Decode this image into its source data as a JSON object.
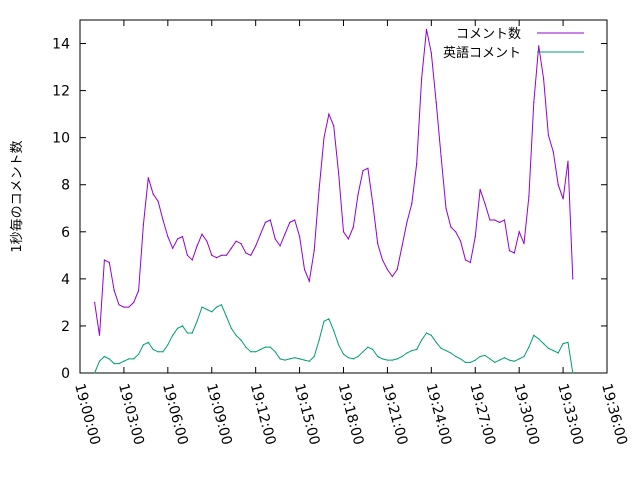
{
  "chart_data": {
    "type": "line",
    "title": "",
    "xlabel": "",
    "ylabel": "1秒毎のコメント数",
    "xlim": [
      "19:00:00",
      "19:36:00"
    ],
    "ylim": [
      0,
      15
    ],
    "x_ticks": [
      "19:00:00",
      "19:03:00",
      "19:06:00",
      "19:09:00",
      "19:12:00",
      "19:15:00",
      "19:18:00",
      "19:21:00",
      "19:24:00",
      "19:27:00",
      "19:30:00",
      "19:33:00",
      "19:36:00"
    ],
    "y_ticks": [
      0,
      2,
      4,
      6,
      8,
      10,
      12,
      14
    ],
    "legend_position": "top-right",
    "grid": false,
    "series": [
      {
        "name": "コメント数",
        "color": "#9400d3",
        "points": [
          [
            "19:01:00",
            3.0
          ],
          [
            "19:01:20",
            1.6
          ],
          [
            "19:01:40",
            4.8
          ],
          [
            "19:02:00",
            4.7
          ],
          [
            "19:02:20",
            3.5
          ],
          [
            "19:02:40",
            2.9
          ],
          [
            "19:03:00",
            2.8
          ],
          [
            "19:03:20",
            2.8
          ],
          [
            "19:03:40",
            3.0
          ],
          [
            "19:04:00",
            3.5
          ],
          [
            "19:04:20",
            6.3
          ],
          [
            "19:04:40",
            8.3
          ],
          [
            "19:05:00",
            7.6
          ],
          [
            "19:05:20",
            7.3
          ],
          [
            "19:05:40",
            6.5
          ],
          [
            "19:06:00",
            5.8
          ],
          [
            "19:06:20",
            5.3
          ],
          [
            "19:06:40",
            5.7
          ],
          [
            "19:07:00",
            5.8
          ],
          [
            "19:07:20",
            5.0
          ],
          [
            "19:07:40",
            4.8
          ],
          [
            "19:08:00",
            5.4
          ],
          [
            "19:08:20",
            5.9
          ],
          [
            "19:08:40",
            5.6
          ],
          [
            "19:09:00",
            5.0
          ],
          [
            "19:09:20",
            4.9
          ],
          [
            "19:09:40",
            5.0
          ],
          [
            "19:10:00",
            5.0
          ],
          [
            "19:10:20",
            5.3
          ],
          [
            "19:10:40",
            5.6
          ],
          [
            "19:11:00",
            5.5
          ],
          [
            "19:11:20",
            5.1
          ],
          [
            "19:11:40",
            5.0
          ],
          [
            "19:12:00",
            5.4
          ],
          [
            "19:12:20",
            5.9
          ],
          [
            "19:12:40",
            6.4
          ],
          [
            "19:13:00",
            6.5
          ],
          [
            "19:13:20",
            5.7
          ],
          [
            "19:13:40",
            5.4
          ],
          [
            "19:14:00",
            5.9
          ],
          [
            "19:14:20",
            6.4
          ],
          [
            "19:14:40",
            6.5
          ],
          [
            "19:15:00",
            5.8
          ],
          [
            "19:15:20",
            4.4
          ],
          [
            "19:15:40",
            3.9
          ],
          [
            "19:16:00",
            5.2
          ],
          [
            "19:16:20",
            7.8
          ],
          [
            "19:16:40",
            10.0
          ],
          [
            "19:17:00",
            11.0
          ],
          [
            "19:17:20",
            10.5
          ],
          [
            "19:17:40",
            8.5
          ],
          [
            "19:18:00",
            6.0
          ],
          [
            "19:18:20",
            5.7
          ],
          [
            "19:18:40",
            6.2
          ],
          [
            "19:19:00",
            7.6
          ],
          [
            "19:19:20",
            8.6
          ],
          [
            "19:19:40",
            8.7
          ],
          [
            "19:20:00",
            7.2
          ],
          [
            "19:20:20",
            5.5
          ],
          [
            "19:20:40",
            4.8
          ],
          [
            "19:21:00",
            4.4
          ],
          [
            "19:21:20",
            4.1
          ],
          [
            "19:21:40",
            4.4
          ],
          [
            "19:22:00",
            5.4
          ],
          [
            "19:22:20",
            6.4
          ],
          [
            "19:22:40",
            7.2
          ],
          [
            "19:23:00",
            8.9
          ],
          [
            "19:23:20",
            12.5
          ],
          [
            "19:23:40",
            14.6
          ],
          [
            "19:24:00",
            13.6
          ],
          [
            "19:24:20",
            11.5
          ],
          [
            "19:24:40",
            9.2
          ],
          [
            "19:25:00",
            7.0
          ],
          [
            "19:25:20",
            6.2
          ],
          [
            "19:25:40",
            6.0
          ],
          [
            "19:26:00",
            5.6
          ],
          [
            "19:26:20",
            4.8
          ],
          [
            "19:26:40",
            4.7
          ],
          [
            "19:27:00",
            5.8
          ],
          [
            "19:27:20",
            7.8
          ],
          [
            "19:27:40",
            7.2
          ],
          [
            "19:28:00",
            6.5
          ],
          [
            "19:28:20",
            6.5
          ],
          [
            "19:28:40",
            6.4
          ],
          [
            "19:29:00",
            6.5
          ],
          [
            "19:29:20",
            5.2
          ],
          [
            "19:29:40",
            5.1
          ],
          [
            "19:30:00",
            6.0
          ],
          [
            "19:30:20",
            5.5
          ],
          [
            "19:30:40",
            7.5
          ],
          [
            "19:31:00",
            11.5
          ],
          [
            "19:31:20",
            13.9
          ],
          [
            "19:31:40",
            12.5
          ],
          [
            "19:32:00",
            10.1
          ],
          [
            "19:32:20",
            9.4
          ],
          [
            "19:32:40",
            8.0
          ],
          [
            "19:33:00",
            7.4
          ],
          [
            "19:33:20",
            9.0
          ],
          [
            "19:33:40",
            4.0
          ]
        ]
      },
      {
        "name": "英語コメント",
        "color": "#009e73",
        "points": [
          [
            "19:01:00",
            0.0
          ],
          [
            "19:01:20",
            0.5
          ],
          [
            "19:01:40",
            0.7
          ],
          [
            "19:02:00",
            0.6
          ],
          [
            "19:02:20",
            0.4
          ],
          [
            "19:02:40",
            0.4
          ],
          [
            "19:03:00",
            0.5
          ],
          [
            "19:03:20",
            0.6
          ],
          [
            "19:03:40",
            0.6
          ],
          [
            "19:04:00",
            0.8
          ],
          [
            "19:04:20",
            1.2
          ],
          [
            "19:04:40",
            1.3
          ],
          [
            "19:05:00",
            1.0
          ],
          [
            "19:05:20",
            0.9
          ],
          [
            "19:05:40",
            0.9
          ],
          [
            "19:06:00",
            1.2
          ],
          [
            "19:06:20",
            1.6
          ],
          [
            "19:06:40",
            1.9
          ],
          [
            "19:07:00",
            2.0
          ],
          [
            "19:07:20",
            1.7
          ],
          [
            "19:07:40",
            1.7
          ],
          [
            "19:08:00",
            2.2
          ],
          [
            "19:08:20",
            2.8
          ],
          [
            "19:08:40",
            2.7
          ],
          [
            "19:09:00",
            2.6
          ],
          [
            "19:09:20",
            2.8
          ],
          [
            "19:09:40",
            2.9
          ],
          [
            "19:10:00",
            2.4
          ],
          [
            "19:10:20",
            1.9
          ],
          [
            "19:10:40",
            1.6
          ],
          [
            "19:11:00",
            1.4
          ],
          [
            "19:11:20",
            1.1
          ],
          [
            "19:11:40",
            0.9
          ],
          [
            "19:12:00",
            0.9
          ],
          [
            "19:12:20",
            1.0
          ],
          [
            "19:12:40",
            1.1
          ],
          [
            "19:13:00",
            1.1
          ],
          [
            "19:13:20",
            0.9
          ],
          [
            "19:13:40",
            0.6
          ],
          [
            "19:14:00",
            0.55
          ],
          [
            "19:14:20",
            0.6
          ],
          [
            "19:14:40",
            0.65
          ],
          [
            "19:15:00",
            0.6
          ],
          [
            "19:15:20",
            0.55
          ],
          [
            "19:15:40",
            0.5
          ],
          [
            "19:16:00",
            0.7
          ],
          [
            "19:16:20",
            1.4
          ],
          [
            "19:16:40",
            2.2
          ],
          [
            "19:17:00",
            2.3
          ],
          [
            "19:17:20",
            1.8
          ],
          [
            "19:17:40",
            1.2
          ],
          [
            "19:18:00",
            0.8
          ],
          [
            "19:18:20",
            0.65
          ],
          [
            "19:18:40",
            0.6
          ],
          [
            "19:19:00",
            0.7
          ],
          [
            "19:19:20",
            0.9
          ],
          [
            "19:19:40",
            1.1
          ],
          [
            "19:20:00",
            1.0
          ],
          [
            "19:20:20",
            0.7
          ],
          [
            "19:20:40",
            0.6
          ],
          [
            "19:21:00",
            0.55
          ],
          [
            "19:21:20",
            0.55
          ],
          [
            "19:21:40",
            0.6
          ],
          [
            "19:22:00",
            0.7
          ],
          [
            "19:22:20",
            0.85
          ],
          [
            "19:22:40",
            0.95
          ],
          [
            "19:23:00",
            1.0
          ],
          [
            "19:23:20",
            1.4
          ],
          [
            "19:23:40",
            1.7
          ],
          [
            "19:24:00",
            1.6
          ],
          [
            "19:24:20",
            1.3
          ],
          [
            "19:24:40",
            1.05
          ],
          [
            "19:25:00",
            0.95
          ],
          [
            "19:25:20",
            0.85
          ],
          [
            "19:25:40",
            0.7
          ],
          [
            "19:26:00",
            0.6
          ],
          [
            "19:26:20",
            0.45
          ],
          [
            "19:26:40",
            0.45
          ],
          [
            "19:27:00",
            0.55
          ],
          [
            "19:27:20",
            0.7
          ],
          [
            "19:27:40",
            0.75
          ],
          [
            "19:28:00",
            0.6
          ],
          [
            "19:28:20",
            0.45
          ],
          [
            "19:28:40",
            0.55
          ],
          [
            "19:29:00",
            0.65
          ],
          [
            "19:29:20",
            0.55
          ],
          [
            "19:29:40",
            0.5
          ],
          [
            "19:30:00",
            0.6
          ],
          [
            "19:30:20",
            0.7
          ],
          [
            "19:30:40",
            1.1
          ],
          [
            "19:31:00",
            1.6
          ],
          [
            "19:31:20",
            1.45
          ],
          [
            "19:31:40",
            1.25
          ],
          [
            "19:32:00",
            1.05
          ],
          [
            "19:32:20",
            0.95
          ],
          [
            "19:32:40",
            0.85
          ],
          [
            "19:33:00",
            1.25
          ],
          [
            "19:33:20",
            1.3
          ],
          [
            "19:33:40",
            0.0
          ]
        ]
      }
    ]
  }
}
